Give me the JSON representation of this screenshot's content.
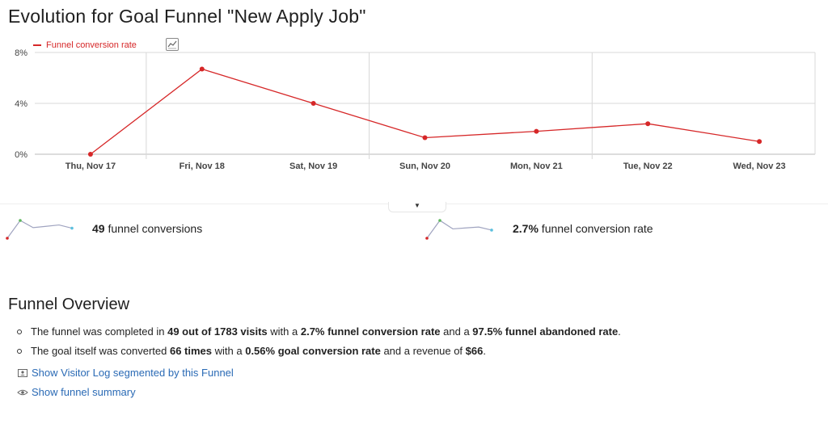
{
  "page": {
    "title": "Evolution for Goal Funnel \"New Apply Job\""
  },
  "chart_data": {
    "type": "line",
    "categories": [
      "Thu, Nov 17",
      "Fri, Nov 18",
      "Sat, Nov 19",
      "Sun, Nov 20",
      "Mon, Nov 21",
      "Tue, Nov 22",
      "Wed, Nov 23"
    ],
    "series": [
      {
        "name": "Funnel conversion rate",
        "values": [
          0.0,
          6.7,
          4.0,
          1.3,
          1.8,
          2.4,
          1.0
        ],
        "color": "#d62728"
      }
    ],
    "y_ticks": [
      "0%",
      "4%",
      "8%"
    ],
    "y_tick_values": [
      0,
      4,
      8
    ],
    "ylim": [
      0,
      8
    ],
    "grid": true,
    "legend_placement": "top-left"
  },
  "chart_controls": {
    "chart_type_icon": "line-chart-icon"
  },
  "sparklines": [
    {
      "label_value": "49",
      "label_text": " funnel conversions",
      "values": [
        0,
        6.7,
        4.0,
        4.5,
        5.0,
        3.8
      ]
    },
    {
      "label_value": "2.7%",
      "label_text": " funnel conversion rate",
      "values": [
        1.0,
        6.7,
        4.0,
        4.3,
        4.6,
        3.6
      ]
    }
  ],
  "overview": {
    "title": "Funnel Overview",
    "line1": {
      "t1": "The funnel was completed in ",
      "b1": "49 out of 1783 visits",
      "t2": " with a ",
      "b2": "2.7% funnel conversion rate",
      "t3": " and a ",
      "b3": "97.5% funnel abandoned rate",
      "t4": "."
    },
    "line2": {
      "t1": "The goal itself was converted ",
      "b1": "66 times",
      "t2": " with a ",
      "b2": "0.56% goal conversion rate",
      "t3": " and a revenue of ",
      "b3": "$66",
      "t4": "."
    }
  },
  "links": {
    "visitor_log": "Show Visitor Log segmented by this Funnel",
    "visitor_log_icon": "visitor-log-icon",
    "summary": "Show funnel summary",
    "summary_icon": "eye-icon"
  },
  "colors": {
    "accent": "#d62728",
    "link": "#2a6ab5",
    "sparkline": "#a0a4c0",
    "spark_max": "#5cb85c",
    "spark_last": "#5bc0de",
    "spark_first": "#d62728"
  }
}
